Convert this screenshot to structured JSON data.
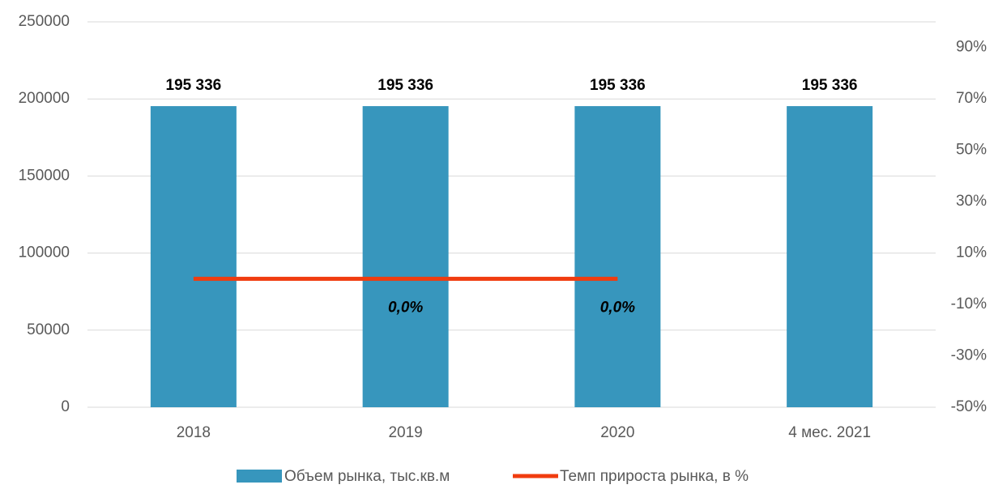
{
  "chart_data": {
    "type": "bar_line",
    "categories": [
      "2018",
      "2019",
      "2020",
      "4 мес. 2021"
    ],
    "series": [
      {
        "name": "Объем рынка, тыс.кв.м",
        "color": "#3796bd",
        "values": [
          195336,
          195336,
          195336,
          195336
        ],
        "value_labels": [
          "195 336",
          "195 336",
          "195 336",
          "195 336"
        ]
      },
      {
        "name": "Темп прироста рынка, в %",
        "color": "#f03c0f",
        "axis": "y2",
        "values": [
          0,
          0,
          0,
          null
        ],
        "value_labels": [
          null,
          "0,0%",
          "0,0%",
          null
        ]
      }
    ],
    "ylim": [
      0,
      250000
    ],
    "yticks": [
      0,
      50000,
      100000,
      150000,
      200000,
      250000
    ],
    "y2lim": [
      -50,
      100
    ],
    "y2ticks": [
      {
        "value": -50,
        "label": "-50%"
      },
      {
        "value": -30,
        "label": "-30%"
      },
      {
        "value": -10,
        "label": "-10%"
      },
      {
        "value": 10,
        "label": "10%"
      },
      {
        "value": 30,
        "label": "30%"
      },
      {
        "value": 50,
        "label": "50%"
      },
      {
        "value": 70,
        "label": "70%"
      },
      {
        "value": 90,
        "label": "90%"
      }
    ],
    "grid": true,
    "legend": "bottom"
  }
}
